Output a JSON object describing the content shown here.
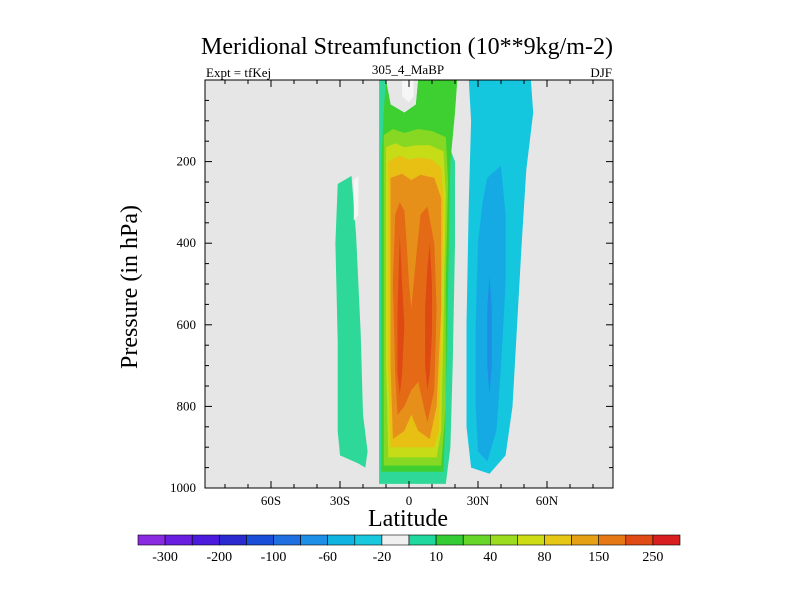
{
  "chart_data": {
    "type": "heatmap",
    "title": "Meridional Streamfunction (10**9kg/m-2)",
    "subtitle_left": "Expt = tfKej",
    "subtitle_center": "305_4_MaBP",
    "subtitle_right": "DJF",
    "xlabel": "Latitude",
    "ylabel": "Pressure (in hPa)",
    "xlim": [
      -90,
      90
    ],
    "ylim": [
      0,
      1000
    ],
    "y_reversed": true,
    "x_ticks": [
      {
        "value": -60,
        "label": "60S"
      },
      {
        "value": -30,
        "label": "30S"
      },
      {
        "value": 0,
        "label": "0"
      },
      {
        "value": 30,
        "label": "30N"
      },
      {
        "value": 60,
        "label": "60N"
      }
    ],
    "y_ticks": [
      {
        "value": 200,
        "label": "200"
      },
      {
        "value": 400,
        "label": "400"
      },
      {
        "value": 600,
        "label": "600"
      },
      {
        "value": 800,
        "label": "800"
      },
      {
        "value": 1000,
        "label": "1000"
      }
    ],
    "background_color": "#e6e6e6",
    "colorbar": {
      "colors": [
        "#8a2be2",
        "#6a1ee0",
        "#4b1adc",
        "#2a2ad0",
        "#1a4ed8",
        "#1f6fe0",
        "#1e8fe6",
        "#10b4e0",
        "#18c8dc",
        "#f0f0f0",
        "#1ed8a0",
        "#33cc33",
        "#66d629",
        "#9bdc1e",
        "#cddc14",
        "#e6c814",
        "#e6a014",
        "#e67814",
        "#e04a14",
        "#d81e1e"
      ],
      "labels": [
        "-300",
        "-200",
        "-100",
        "-60",
        "-20",
        "10",
        "40",
        "80",
        "150",
        "250"
      ]
    },
    "regions": [
      {
        "name": "southern-weak-positive",
        "level": 10,
        "color": "#2ed898",
        "outline": [
          [
            -31,
            255
          ],
          [
            -25,
            235
          ],
          [
            -23,
            380
          ],
          [
            -21,
            620
          ],
          [
            -20,
            820
          ],
          [
            -18,
            910
          ],
          [
            -19,
            950
          ],
          [
            -22,
            940
          ],
          [
            -30,
            920
          ],
          [
            -31,
            860
          ],
          [
            -31,
            640
          ],
          [
            -32,
            400
          ]
        ]
      },
      {
        "name": "hadley-level-10",
        "level": 10,
        "color": "#2ed898",
        "outline": [
          [
            -13,
            0
          ],
          [
            -10,
            0
          ],
          [
            -8,
            60
          ],
          [
            -2,
            80
          ],
          [
            3,
            60
          ],
          [
            4,
            0
          ],
          [
            9,
            0
          ],
          [
            12,
            80
          ],
          [
            20,
            200
          ],
          [
            20,
            400
          ],
          [
            19,
            700
          ],
          [
            18,
            900
          ],
          [
            16,
            990
          ],
          [
            -13,
            990
          ],
          [
            -13,
            600
          ],
          [
            -13,
            200
          ]
        ]
      },
      {
        "name": "hadley-level-40",
        "level": 40,
        "color": "#3ecf30",
        "outline": [
          [
            -10,
            0
          ],
          [
            -8,
            60
          ],
          [
            -2,
            80
          ],
          [
            3,
            60
          ],
          [
            4,
            0
          ],
          [
            21,
            0
          ],
          [
            20,
            80
          ],
          [
            18,
            200
          ],
          [
            17,
            500
          ],
          [
            16,
            800
          ],
          [
            15,
            960
          ],
          [
            -12,
            960
          ],
          [
            -12,
            600
          ],
          [
            -12,
            200
          ],
          [
            -11,
            80
          ]
        ]
      },
      {
        "name": "hadley-level-60",
        "level": 60,
        "color": "#86d823",
        "outline": [
          [
            -11,
            135
          ],
          [
            -7,
            120
          ],
          [
            -2,
            130
          ],
          [
            4,
            120
          ],
          [
            10,
            125
          ],
          [
            16,
            140
          ],
          [
            17,
            250
          ],
          [
            16,
            500
          ],
          [
            16,
            800
          ],
          [
            14,
            945
          ],
          [
            -11,
            945
          ],
          [
            -11,
            600
          ],
          [
            -11,
            250
          ]
        ]
      },
      {
        "name": "hadley-level-80",
        "level": 80,
        "color": "#c6dc16",
        "outline": [
          [
            -10,
            165
          ],
          [
            -6,
            155
          ],
          [
            -2,
            165
          ],
          [
            3,
            160
          ],
          [
            9,
            160
          ],
          [
            15,
            175
          ],
          [
            16,
            280
          ],
          [
            15,
            600
          ],
          [
            14,
            860
          ],
          [
            12,
            925
          ],
          [
            -9,
            925
          ],
          [
            -10,
            700
          ],
          [
            -10,
            300
          ]
        ]
      },
      {
        "name": "hadley-level-100",
        "level": 100,
        "color": "#e8c014",
        "outline": [
          [
            -9,
            200
          ],
          [
            -4,
            185
          ],
          [
            0,
            195
          ],
          [
            4,
            190
          ],
          [
            10,
            195
          ],
          [
            14,
            215
          ],
          [
            15,
            300
          ],
          [
            14,
            600
          ],
          [
            13,
            860
          ],
          [
            11,
            900
          ],
          [
            -8,
            900
          ],
          [
            -9,
            700
          ],
          [
            -9,
            300
          ]
        ]
      },
      {
        "name": "hadley-level-150",
        "level": 150,
        "color": "#e6901a",
        "outline": [
          [
            -8,
            240
          ],
          [
            -3,
            230
          ],
          [
            1,
            245
          ],
          [
            5,
            232
          ],
          [
            11,
            240
          ],
          [
            14,
            290
          ],
          [
            14,
            560
          ],
          [
            12,
            800
          ],
          [
            9,
            880
          ],
          [
            4,
            860
          ],
          [
            1,
            820
          ],
          [
            -2,
            860
          ],
          [
            -7,
            880
          ],
          [
            -8,
            700
          ],
          [
            -8,
            300
          ]
        ]
      },
      {
        "name": "hadley-level-200",
        "level": 200,
        "color": "#e46a16",
        "outline": [
          [
            -6,
            330
          ],
          [
            -4,
            300
          ],
          [
            -2,
            320
          ],
          [
            -1,
            400
          ],
          [
            0,
            500
          ],
          [
            1,
            560
          ],
          [
            3,
            440
          ],
          [
            5,
            330
          ],
          [
            8,
            310
          ],
          [
            11,
            400
          ],
          [
            12,
            560
          ],
          [
            11,
            760
          ],
          [
            8,
            840
          ],
          [
            6,
            790
          ],
          [
            4,
            740
          ],
          [
            1,
            760
          ],
          [
            -2,
            800
          ],
          [
            -5,
            820
          ],
          [
            -6,
            720
          ],
          [
            -7,
            500
          ]
        ]
      },
      {
        "name": "hadley-level-250-south",
        "level": 250,
        "color": "#de4a12",
        "outline": [
          [
            -4,
            380
          ],
          [
            -3,
            500
          ],
          [
            -2,
            600
          ],
          [
            -3,
            720
          ],
          [
            -4,
            770
          ],
          [
            -5,
            720
          ],
          [
            -5,
            560
          ]
        ]
      },
      {
        "name": "hadley-level-250-north",
        "level": 250,
        "color": "#de4a12",
        "outline": [
          [
            9,
            400
          ],
          [
            10,
            500
          ],
          [
            10,
            620
          ],
          [
            9,
            720
          ],
          [
            8,
            760
          ],
          [
            7,
            700
          ],
          [
            7,
            560
          ],
          [
            8,
            460
          ]
        ]
      },
      {
        "name": "ferrel-level-minus20",
        "level": -20,
        "color": "#14c6de",
        "outline": [
          [
            26,
            0
          ],
          [
            43,
            0
          ],
          [
            53,
            0
          ],
          [
            54,
            80
          ],
          [
            51,
            220
          ],
          [
            49,
            400
          ],
          [
            47,
            600
          ],
          [
            45,
            800
          ],
          [
            42,
            920
          ],
          [
            35,
            965
          ],
          [
            27,
            950
          ],
          [
            25,
            850
          ],
          [
            25,
            600
          ],
          [
            26,
            300
          ],
          [
            27,
            100
          ]
        ]
      },
      {
        "name": "ferrel-level-minus60",
        "level": -60,
        "color": "#15aae4",
        "outline": [
          [
            34,
            240
          ],
          [
            40,
            210
          ],
          [
            42,
            330
          ],
          [
            42,
            500
          ],
          [
            40,
            700
          ],
          [
            38,
            860
          ],
          [
            34,
            935
          ],
          [
            30,
            910
          ],
          [
            29,
            800
          ],
          [
            29,
            600
          ],
          [
            30,
            400
          ],
          [
            32,
            300
          ]
        ]
      },
      {
        "name": "ferrel-level-minus100",
        "level": -100,
        "color": "#1e8ee6",
        "outline": [
          [
            35,
            480
          ],
          [
            36,
            560
          ],
          [
            36,
            700
          ],
          [
            35,
            770
          ],
          [
            34,
            700
          ],
          [
            34,
            560
          ]
        ]
      },
      {
        "name": "southern-pole-cell-fragment",
        "level": -20,
        "color": "#f6f6f6",
        "outline": [
          [
            -24,
            245
          ],
          [
            -22,
            235
          ],
          [
            -22,
            330
          ],
          [
            -24,
            345
          ]
        ]
      },
      {
        "name": "top-white-gap",
        "level": 10,
        "color": "#f6f6f6",
        "outline": [
          [
            -3,
            0
          ],
          [
            2,
            0
          ],
          [
            2,
            40
          ],
          [
            0,
            55
          ],
          [
            -3,
            40
          ]
        ]
      }
    ]
  }
}
